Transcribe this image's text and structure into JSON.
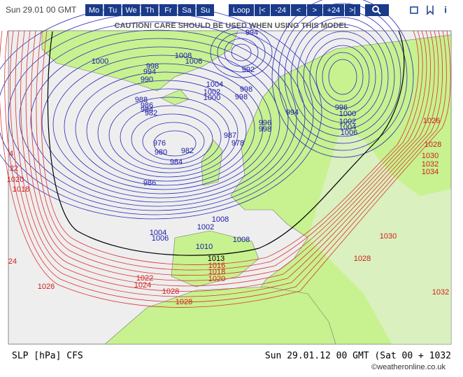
{
  "toolbar": {
    "date": "Sun 29.01 00 GMT",
    "days": [
      "Mo",
      "Tu",
      "We",
      "Th",
      "Fr",
      "Sa",
      "Su"
    ],
    "nav": [
      "Loop",
      "|<",
      "-24",
      "<",
      ">",
      "+24",
      ">|"
    ]
  },
  "caution": "CAUTION! CARE SHOULD BE USED WHEN USING THIS MODEL",
  "isobar_labels": [
    {
      "color": "#1a1aa8",
      "labels": [
        "1000",
        "998",
        "994",
        "990",
        "1008",
        "1006",
        "992",
        "994",
        "1004",
        "1002",
        "1000",
        "998",
        "998",
        "988",
        "986",
        "984",
        "982",
        "976",
        "980",
        "982",
        "984",
        "986",
        "987",
        "978",
        "996",
        "998",
        "994",
        "996",
        "1000",
        "1002",
        "1004",
        "1006",
        "1004",
        "1006",
        "1002",
        "1008",
        "1010",
        "1008"
      ]
    },
    {
      "color": "#000000",
      "labels": [
        "1013"
      ]
    },
    {
      "color": "#d02020",
      "labels": [
        "1026",
        "1028",
        "1030",
        "1032",
        "1034",
        "4",
        "22",
        "1020",
        "1018",
        "24",
        "1016",
        "1018",
        "1020",
        "1022",
        "1024",
        "1026",
        "1028",
        "1028",
        "1030",
        "1028",
        "1032"
      ]
    }
  ],
  "footer": {
    "left": "SLP [hPa] CFS",
    "right": "Sun 29.01.12 00 GMT (Sat 00 + 1032",
    "credit": "©weatheronline.co.uk"
  }
}
